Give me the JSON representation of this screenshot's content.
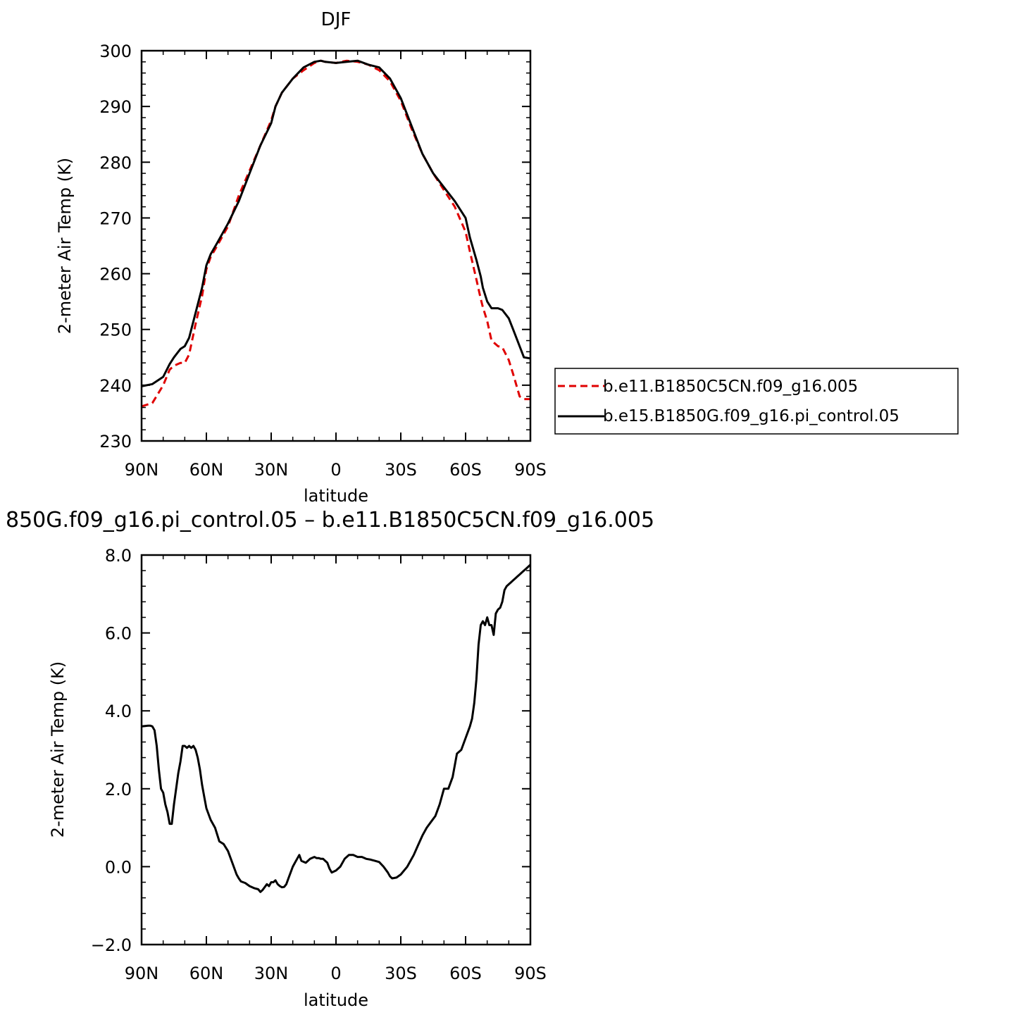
{
  "chart_data": [
    {
      "type": "line",
      "title": "DJF",
      "xlabel": "latitude",
      "ylabel": "2-meter Air Temp (K)",
      "xlim": [
        -90,
        90
      ],
      "ylim": [
        230,
        300
      ],
      "x_tick_values": [
        -90,
        -60,
        -30,
        0,
        30,
        60,
        90
      ],
      "x_tick_labels": [
        "90N",
        "60N",
        "30N",
        "0",
        "30S",
        "60S",
        "90S"
      ],
      "y_tick_values": [
        230,
        240,
        250,
        260,
        270,
        280,
        290,
        300
      ],
      "y_tick_labels": [
        "230",
        "240",
        "250",
        "260",
        "270",
        "280",
        "290",
        "300"
      ],
      "legend_position": "right",
      "series": [
        {
          "name": "b.e11.B1850C5CN.f09_g16.005",
          "color": "#e00000",
          "dash": true,
          "x": [
            -90,
            -85,
            -80,
            -77,
            -75,
            -72,
            -70,
            -68,
            -65,
            -62,
            -60,
            -58,
            -55,
            -50,
            -45,
            -40,
            -35,
            -30,
            -28,
            -25,
            -20,
            -15,
            -10,
            -7,
            -5,
            0,
            5,
            10,
            15,
            20,
            25,
            30,
            35,
            40,
            45,
            50,
            55,
            60,
            62,
            65,
            67,
            68,
            70,
            72,
            75,
            77,
            80,
            82,
            85,
            87,
            90
          ],
          "y": [
            236.2,
            236.8,
            240,
            242.8,
            243.5,
            244,
            244,
            245.5,
            251,
            256,
            260.8,
            263,
            265,
            268.5,
            274,
            278.5,
            283,
            287.5,
            290,
            292.5,
            295,
            296.5,
            297.8,
            298.2,
            298,
            297.8,
            298.2,
            298,
            297.5,
            296.5,
            294.5,
            291,
            286,
            281.5,
            278,
            275,
            272,
            267.5,
            264,
            259,
            255.5,
            254,
            251.5,
            248,
            247,
            246.8,
            244.5,
            242,
            238,
            237.5,
            237.5
          ]
        },
        {
          "name": "b.e15.B1850G.f09_g16.pi_control.05",
          "color": "#000000",
          "dash": false,
          "x": [
            -90,
            -85,
            -80,
            -77,
            -75,
            -72,
            -70,
            -68,
            -65,
            -62,
            -60,
            -58,
            -55,
            -50,
            -45,
            -40,
            -35,
            -30,
            -28,
            -25,
            -20,
            -15,
            -10,
            -7,
            -5,
            0,
            5,
            10,
            15,
            20,
            25,
            30,
            35,
            40,
            45,
            50,
            55,
            60,
            62,
            65,
            67,
            68,
            70,
            72,
            75,
            77,
            80,
            82,
            85,
            87,
            90
          ],
          "y": [
            239.8,
            240.2,
            241.5,
            243.8,
            245,
            246.5,
            247,
            248.5,
            253,
            257.5,
            261.5,
            263.5,
            265.5,
            269,
            273,
            278,
            283,
            287,
            290,
            292.5,
            295,
            297,
            298,
            298.2,
            298,
            297.8,
            298,
            298.2,
            297.5,
            297,
            295,
            291.5,
            286.5,
            281.5,
            278,
            275.5,
            273,
            270,
            266.5,
            262.5,
            259.5,
            257.5,
            255,
            253.8,
            253.8,
            253.5,
            252,
            250,
            247,
            245,
            244.8
          ]
        }
      ]
    },
    {
      "type": "line",
      "title": "850G.f09_g16.pi_control.05 – b.e11.B1850C5CN.f09_g16.005",
      "xlabel": "latitude",
      "ylabel": "2-meter Air Temp (K)",
      "xlim": [
        -90,
        90
      ],
      "ylim": [
        -2,
        8
      ],
      "x_tick_values": [
        -90,
        -60,
        -30,
        0,
        30,
        60,
        90
      ],
      "x_tick_labels": [
        "90N",
        "60N",
        "30N",
        "0",
        "30S",
        "60S",
        "90S"
      ],
      "y_tick_values": [
        -2,
        0,
        2,
        4,
        6,
        8
      ],
      "y_tick_labels": [
        "−2.0",
        "0.0",
        "2.0",
        "4.0",
        "6.0",
        "8.0"
      ],
      "series": [
        {
          "color": "#000000",
          "x": [
            -90,
            -87,
            -86,
            -85,
            -84,
            -83,
            -82,
            -81,
            -80,
            -79,
            -78,
            -77,
            -76,
            -75,
            -73,
            -72,
            -71,
            -70,
            -69,
            -68,
            -67,
            -66,
            -65,
            -64,
            -63,
            -62,
            -61,
            -60,
            -58,
            -56,
            -54,
            -52,
            -50,
            -48,
            -46,
            -45,
            -44,
            -42,
            -40,
            -38,
            -36,
            -35,
            -34,
            -32,
            -31,
            -30,
            -29,
            -28,
            -27,
            -26,
            -25,
            -24,
            -23,
            -22,
            -20,
            -19,
            -18,
            -17,
            -16,
            -14,
            -12,
            -10,
            -9,
            -8,
            -7,
            -6,
            -5,
            -4,
            -3,
            -2,
            0,
            2,
            4,
            6,
            8,
            10,
            12,
            14,
            16,
            18,
            20,
            22,
            24,
            25,
            26,
            28,
            30,
            33,
            36,
            38,
            40,
            42,
            44,
            46,
            48,
            50,
            52,
            54,
            56,
            58,
            60,
            62,
            63,
            64,
            65,
            66,
            67,
            68,
            69,
            70,
            71,
            72,
            73,
            74,
            75,
            76,
            77,
            78,
            79,
            80,
            81,
            82,
            83,
            84,
            85,
            86,
            87,
            88,
            89,
            90
          ],
          "y": [
            3.6,
            3.62,
            3.62,
            3.6,
            3.5,
            3.1,
            2.5,
            2.0,
            1.9,
            1.6,
            1.4,
            1.1,
            1.1,
            1.6,
            2.4,
            2.7,
            3.1,
            3.1,
            3.05,
            3.1,
            3.05,
            3.1,
            3.0,
            2.8,
            2.5,
            2.1,
            1.8,
            1.5,
            1.2,
            1.0,
            0.65,
            0.58,
            0.4,
            0.1,
            -0.2,
            -0.3,
            -0.38,
            -0.42,
            -0.5,
            -0.55,
            -0.58,
            -0.65,
            -0.6,
            -0.45,
            -0.5,
            -0.4,
            -0.4,
            -0.35,
            -0.45,
            -0.5,
            -0.53,
            -0.52,
            -0.45,
            -0.3,
            0.0,
            0.1,
            0.2,
            0.3,
            0.15,
            0.1,
            0.2,
            0.25,
            0.22,
            0.22,
            0.2,
            0.2,
            0.15,
            0.1,
            -0.05,
            -0.15,
            -0.1,
            0.0,
            0.2,
            0.3,
            0.3,
            0.25,
            0.25,
            0.2,
            0.18,
            0.15,
            0.12,
            0.0,
            -0.15,
            -0.25,
            -0.3,
            -0.28,
            -0.2,
            0.0,
            0.3,
            0.55,
            0.8,
            1.0,
            1.15,
            1.3,
            1.6,
            2.0,
            2.0,
            2.3,
            2.9,
            3.0,
            3.3,
            3.6,
            3.8,
            4.2,
            4.8,
            5.7,
            6.2,
            6.3,
            6.2,
            6.4,
            6.2,
            6.2,
            5.95,
            6.5,
            6.6,
            6.65,
            6.8,
            7.1,
            7.2,
            7.25,
            7.3,
            7.35,
            7.4,
            7.45,
            7.5,
            7.55,
            7.6,
            7.65,
            7.7,
            7.75
          ]
        }
      ]
    }
  ]
}
